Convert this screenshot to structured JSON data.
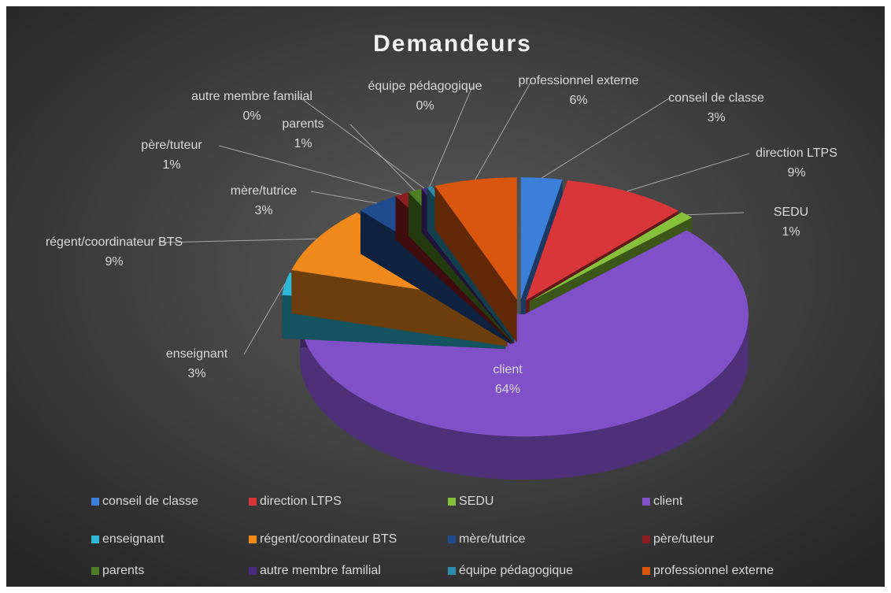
{
  "chart_data": {
    "type": "pie3d",
    "title": "Demandeurs",
    "categories": [
      "conseil de classe",
      "direction LTPS",
      "SEDU",
      "client",
      "enseignant",
      "régent/coordinateur BTS",
      "mère/tutrice",
      "père/tuteur",
      "parents",
      "autre membre familial",
      "équipe pédagogique",
      "professionnel externe"
    ],
    "values": [
      3,
      9,
      1,
      64,
      3,
      9,
      3,
      1,
      1,
      0.4,
      0.4,
      6
    ],
    "value_labels": [
      "3%",
      "9%",
      "1%",
      "64%",
      "3%",
      "9%",
      "3%",
      "1%",
      "1%",
      "0%",
      "0%",
      "6%"
    ],
    "colors": [
      "#3b7fd9",
      "#d9363a",
      "#86c03a",
      "#8050c8",
      "#2fb8d6",
      "#f0891c",
      "#1f4c8f",
      "#8c1d20",
      "#4d7e24",
      "#4a2a7e",
      "#2a8bab",
      "#d9560f"
    ],
    "legend": "bottom"
  }
}
